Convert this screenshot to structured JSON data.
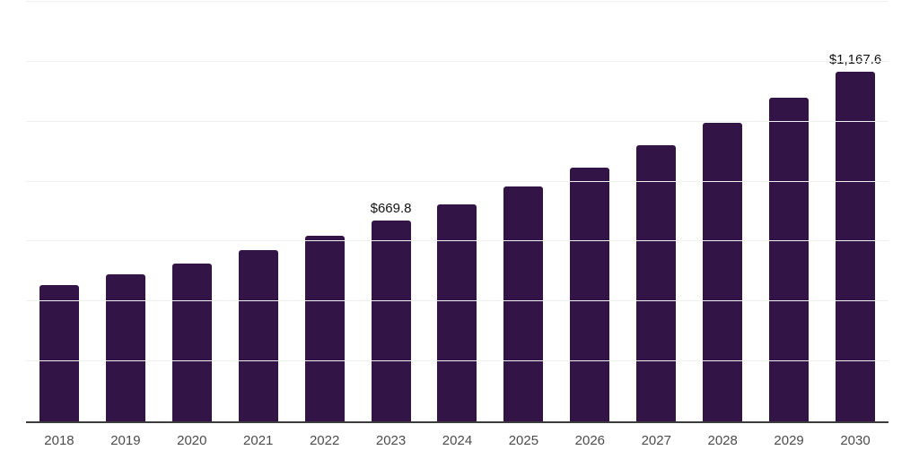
{
  "chart_data": {
    "type": "bar",
    "title": "",
    "xlabel": "",
    "ylabel": "",
    "categories": [
      "2018",
      "2019",
      "2020",
      "2021",
      "2022",
      "2023",
      "2024",
      "2025",
      "2026",
      "2027",
      "2028",
      "2029",
      "2030"
    ],
    "values": [
      456,
      492,
      527,
      572,
      618,
      669.8,
      724,
      784,
      848,
      920,
      996,
      1079,
      1167.6
    ],
    "data_labels": {
      "2023": "$669.8",
      "2030": "$1,167.6"
    },
    "ylim": [
      0,
      1400
    ],
    "gridline_values": [
      200,
      400,
      600,
      800,
      1000,
      1200,
      1400
    ],
    "grid": "horizontal",
    "legend": "none",
    "colors": {
      "bar": "#321447",
      "gridline": "#f0f0f2",
      "axis_line": "#3c3c3c",
      "tick_label": "#4d4d4d",
      "data_label": "#121212",
      "background": "#ffffff"
    }
  }
}
